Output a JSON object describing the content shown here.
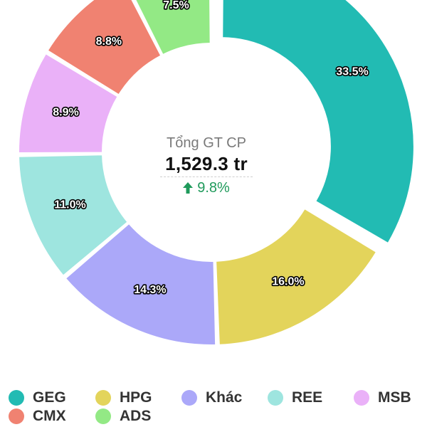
{
  "chart_data": {
    "type": "pie",
    "variant": "donut",
    "slices": [
      {
        "label": "GEG",
        "value": 33.5,
        "value_label": "33.5%",
        "color": "#22bbb3"
      },
      {
        "label": "HPG",
        "value": 16.0,
        "value_label": "16.0%",
        "color": "#e3d45b"
      },
      {
        "label": "Khác",
        "value": 14.3,
        "value_label": "14.3%",
        "color": "#aba8f9"
      },
      {
        "label": "REE",
        "value": 11.0,
        "value_label": "11.0%",
        "color": "#9ee5df"
      },
      {
        "label": "MSB",
        "value": 8.9,
        "value_label": "8.9%",
        "color": "#eab1f8"
      },
      {
        "label": "CMX",
        "value": 8.8,
        "value_label": "8.8%",
        "color": "#f08271"
      },
      {
        "label": "ADS",
        "value": 7.5,
        "value_label": "7.5%",
        "color": "#93e985"
      }
    ],
    "highlighted_slice": "GEG",
    "legend_position": "bottom"
  },
  "center": {
    "title": "Tổng GT CP",
    "value": "1,529.3 tr",
    "change": "9.8%",
    "change_direction": "up",
    "change_color": "#1f9a5b"
  }
}
